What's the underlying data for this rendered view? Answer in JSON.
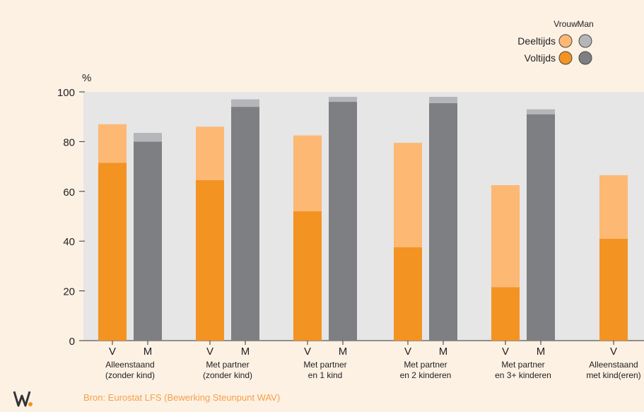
{
  "chart_data": {
    "type": "bar",
    "stacked": true,
    "ylabel": "%",
    "ylim": [
      0,
      100
    ],
    "yticks": [
      0,
      20,
      40,
      60,
      80,
      100
    ],
    "grid": false,
    "legend": {
      "placement": "top-right",
      "column_headers": [
        "Vrouw",
        "Man"
      ],
      "rows": [
        "Deeltijds",
        "Voltijds"
      ]
    },
    "colors": {
      "vrouw_voltijds": "#F39322",
      "vrouw_deeltijds": "#FDB874",
      "man_voltijds": "#7E7F82",
      "man_deeltijds": "#B5B6B9",
      "plot_background": "#E6E6E6",
      "page_background": "#FDF1E4"
    },
    "groups": [
      {
        "label_lines": [
          "Alleenstaand",
          "(zonder kind)"
        ],
        "bars": [
          {
            "label": "V",
            "sex": "Vrouw",
            "voltijds": 71.5,
            "deeltijds": 15.5
          },
          {
            "label": "M",
            "sex": "Man",
            "voltijds": 80,
            "deeltijds": 3.5
          }
        ]
      },
      {
        "label_lines": [
          "Met partner",
          "(zonder kind)"
        ],
        "bars": [
          {
            "label": "V",
            "sex": "Vrouw",
            "voltijds": 64.5,
            "deeltijds": 21.5
          },
          {
            "label": "M",
            "sex": "Man",
            "voltijds": 94,
            "deeltijds": 3
          }
        ]
      },
      {
        "label_lines": [
          "Met partner",
          "en 1 kind"
        ],
        "bars": [
          {
            "label": "V",
            "sex": "Vrouw",
            "voltijds": 52,
            "deeltijds": 30.5
          },
          {
            "label": "M",
            "sex": "Man",
            "voltijds": 96,
            "deeltijds": 2
          }
        ]
      },
      {
        "label_lines": [
          "Met partner",
          "en 2 kinderen"
        ],
        "bars": [
          {
            "label": "V",
            "sex": "Vrouw",
            "voltijds": 37.5,
            "deeltijds": 42
          },
          {
            "label": "M",
            "sex": "Man",
            "voltijds": 95.5,
            "deeltijds": 2.5
          }
        ]
      },
      {
        "label_lines": [
          "Met partner",
          "en 3+ kinderen"
        ],
        "bars": [
          {
            "label": "V",
            "sex": "Vrouw",
            "voltijds": 21.5,
            "deeltijds": 41
          },
          {
            "label": "M",
            "sex": "Man",
            "voltijds": 91,
            "deeltijds": 2
          }
        ]
      },
      {
        "label_lines": [
          "Alleenstaand",
          "met kind(eren)"
        ],
        "bars": [
          {
            "label": "V",
            "sex": "Vrouw",
            "voltijds": 41,
            "deeltijds": 25.5
          }
        ]
      }
    ]
  },
  "source": "Bron: Eurostat LFS (Bewerking Steunpunt WAV)",
  "logo_text": "WAV"
}
